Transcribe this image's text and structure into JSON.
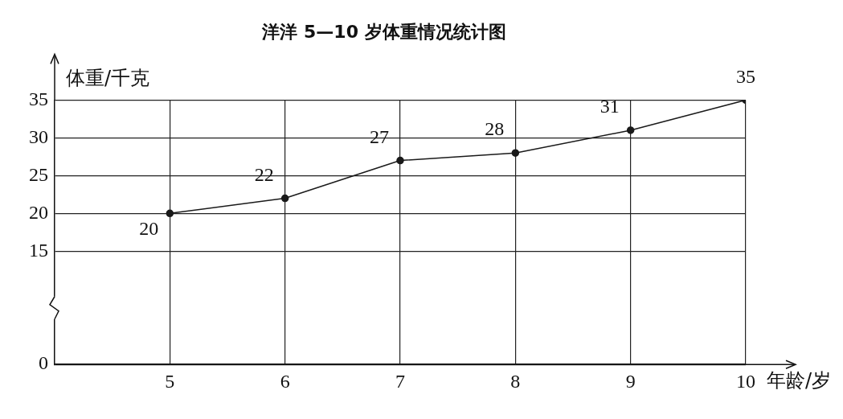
{
  "chart_data": {
    "type": "line",
    "title": "洋洋 5—10 岁体重情况统计图",
    "xlabel": "年龄/岁",
    "ylabel": "体重/千克",
    "x": [
      5,
      6,
      7,
      8,
      9,
      10
    ],
    "series": [
      {
        "color": "#1a1a1a",
        "values": [
          20,
          22,
          27,
          28,
          31,
          35
        ]
      }
    ],
    "xlim": [
      4,
      10
    ],
    "xticks": [
      5,
      6,
      7,
      8,
      9,
      10
    ],
    "ylim": [
      0,
      35
    ],
    "yticks": [
      0,
      15,
      20,
      25,
      30,
      35
    ],
    "grid": true,
    "legend": false,
    "marker": "circle",
    "line_style": "solid",
    "data_labels": true
  }
}
